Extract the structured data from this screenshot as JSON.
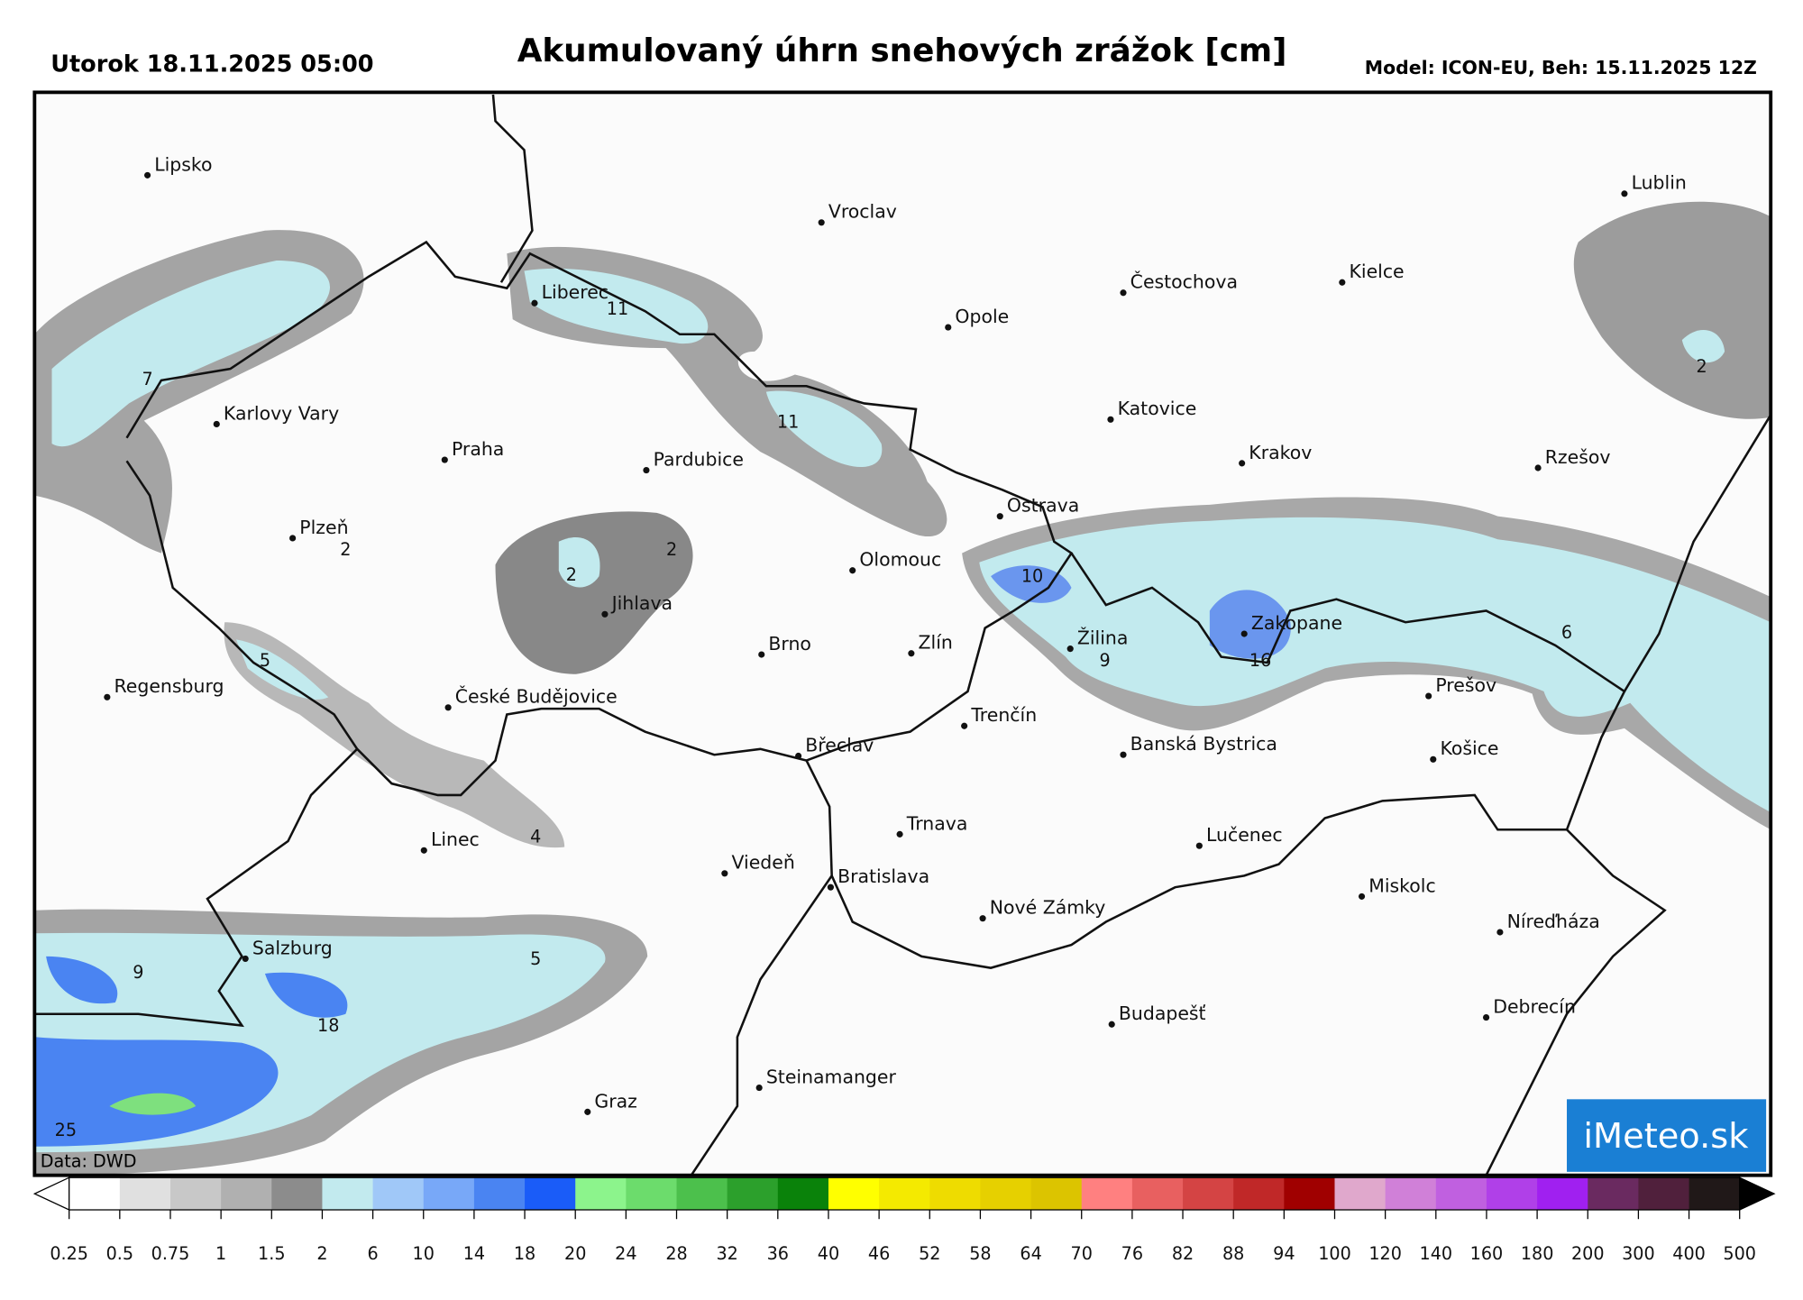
{
  "header": {
    "date": "Utorok 18.11.2025 05:00",
    "title": "Akumulovaný úhrn snehových zrážok [cm]",
    "model": "Model: ICON-EU, Beh: 15.11.2025 12Z"
  },
  "cities": [
    "Lipsko",
    "Vroclav",
    "Lublin",
    "Liberec",
    "Čestochova",
    "Kielce",
    "Opole",
    "Karlovy Vary",
    "Praha",
    "Pardubice",
    "Katovice",
    "Krakov",
    "Rzešov",
    "Ostrava",
    "Plzeň",
    "Olomouc",
    "Jihlava",
    "Brno",
    "Zlín",
    "Žilina",
    "Zakopane",
    "Regensburg",
    "České Budějovice",
    "Prešov",
    "Trenčín",
    "Banská Bystrica",
    "Břeclav",
    "Košice",
    "Trnava",
    "Lučenec",
    "Linec",
    "Viedeň",
    "Bratislava",
    "Miskolc",
    "Nové Zámky",
    "Níreďháza",
    "Salzburg",
    "Budapešť",
    "Debrecín",
    "Steinamanger",
    "Graz"
  ],
  "map_labels": [
    7,
    11,
    11,
    2,
    2,
    2,
    10,
    9,
    16,
    6,
    2,
    5,
    4,
    5,
    9,
    18,
    25
  ],
  "source": "Data: DWD",
  "logo": "iMeteo.sk",
  "colorbar": {
    "ticks": [
      0.25,
      0.5,
      0.75,
      1,
      1.5,
      2,
      6,
      10,
      14,
      18,
      20,
      24,
      28,
      32,
      36,
      40,
      46,
      52,
      58,
      64,
      70,
      76,
      82,
      88,
      94,
      100,
      120,
      140,
      160,
      180,
      200,
      300,
      400,
      500
    ],
    "colors": [
      "#ffffff",
      "#e0e0e0",
      "#c8c8c8",
      "#b0b0b0",
      "#8c8c8c",
      "#c2eaee",
      "#a0c8f8",
      "#78a8f8",
      "#4a84f2",
      "#1a5cf8",
      "#8cf48c",
      "#6cdc6c",
      "#4cc04c",
      "#2ca02c",
      "#0a820a",
      "#ffff00",
      "#f4ea00",
      "#eedc00",
      "#e6d000",
      "#dcc400",
      "#ff8080",
      "#e86060",
      "#d44444",
      "#c02828",
      "#a00000",
      "#e0a8cc",
      "#d080d8",
      "#c060e0",
      "#b040e8",
      "#a020f0",
      "#6a2a60",
      "#50203c",
      "#201818"
    ],
    "under_color": "#ffffff",
    "over_color": "#000000"
  }
}
